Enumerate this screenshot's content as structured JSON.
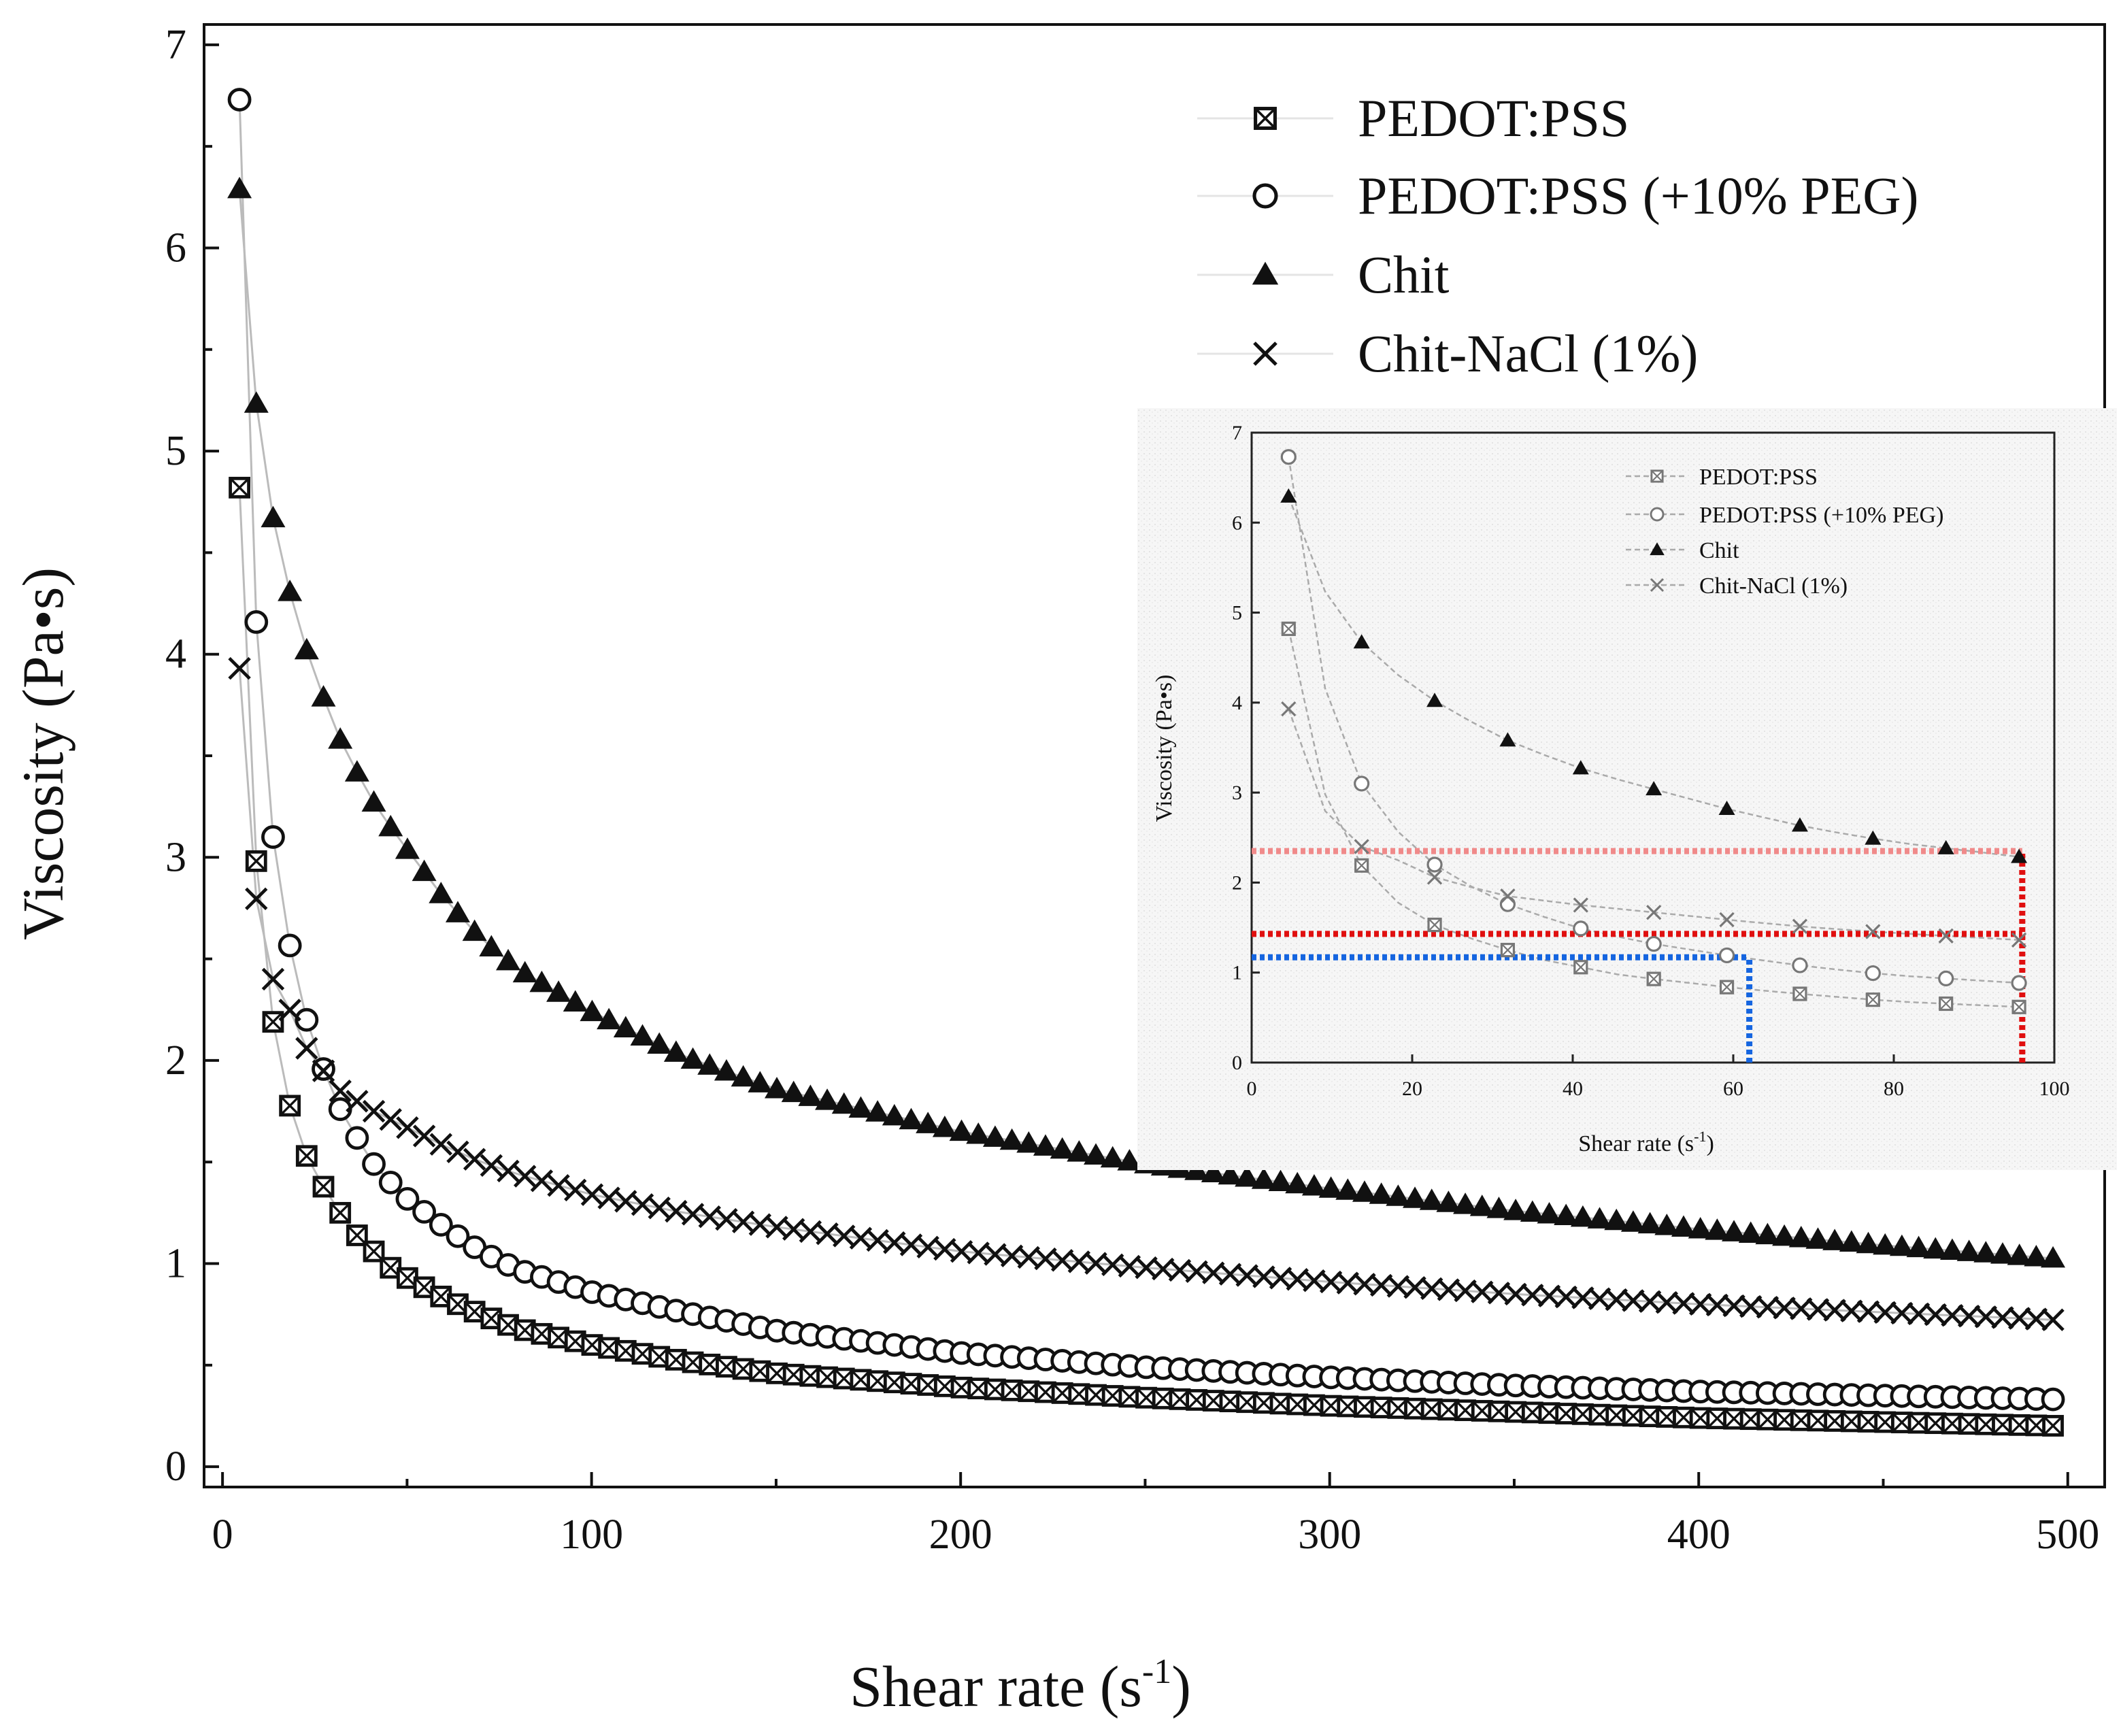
{
  "chart_data": {
    "type": "scatter",
    "xlabel": "Shear rate (s-1)",
    "xlabel_main": "Shear rate (s",
    "xlabel_sup": "-1",
    "xlabel_close": ")",
    "ylabel": "Viscosity (Pa•s)",
    "xlim": [
      -5,
      510
    ],
    "ylim": [
      -0.1,
      7.1
    ],
    "x_ticks": [
      0,
      100,
      200,
      300,
      400,
      500
    ],
    "y_ticks": [
      0,
      1,
      2,
      3,
      4,
      5,
      6,
      7
    ],
    "legend_position": "top-right",
    "series": [
      {
        "name": "PEDOT:PSS",
        "marker": "boxed-x",
        "x": [
          4.6,
          9.1,
          13.7,
          18.2,
          22.8,
          27.3,
          31.9,
          36.4,
          41,
          45.5,
          50,
          60,
          70,
          80,
          100,
          125,
          150,
          200,
          250,
          300,
          350,
          400,
          450,
          500
        ],
        "y": [
          4.82,
          2.99,
          2.19,
          1.78,
          1.53,
          1.38,
          1.25,
          1.14,
          1.06,
          0.98,
          0.93,
          0.83,
          0.75,
          0.68,
          0.6,
          0.52,
          0.46,
          0.39,
          0.34,
          0.3,
          0.27,
          0.24,
          0.22,
          0.2
        ]
      },
      {
        "name": "PEDOT:PSS (+10% PEG)",
        "marker": "circle",
        "x": [
          4.6,
          9.1,
          13.7,
          18.2,
          22.8,
          27.3,
          31.9,
          36.4,
          41,
          45.5,
          50,
          60,
          70,
          80,
          100,
          125,
          150,
          200,
          250,
          300,
          350,
          400,
          450,
          500
        ],
        "y": [
          6.73,
          4.17,
          3.1,
          2.57,
          2.2,
          1.96,
          1.76,
          1.62,
          1.49,
          1.4,
          1.32,
          1.18,
          1.06,
          0.97,
          0.86,
          0.76,
          0.67,
          0.56,
          0.49,
          0.44,
          0.4,
          0.37,
          0.35,
          0.33
        ]
      },
      {
        "name": "Chit",
        "marker": "triangle-filled",
        "x": [
          4.6,
          9.1,
          13.7,
          18.2,
          22.8,
          27.3,
          31.9,
          36.4,
          41,
          45.5,
          50,
          60,
          70,
          80,
          100,
          125,
          150,
          200,
          250,
          300,
          350,
          400,
          450,
          500
        ],
        "y": [
          6.29,
          5.24,
          4.67,
          4.31,
          4.02,
          3.79,
          3.58,
          3.42,
          3.27,
          3.15,
          3.04,
          2.8,
          2.6,
          2.45,
          2.24,
          2.02,
          1.86,
          1.65,
          1.49,
          1.37,
          1.26,
          1.17,
          1.09,
          1.02
        ]
      },
      {
        "name": "Chit-NaCl (1%)",
        "marker": "x-cross",
        "x": [
          4.6,
          9.1,
          13.7,
          18.2,
          22.8,
          27.3,
          31.9,
          36.4,
          41,
          45.5,
          50,
          60,
          70,
          80,
          100,
          125,
          150,
          200,
          250,
          300,
          350,
          400,
          450,
          500
        ],
        "y": [
          3.93,
          2.8,
          2.4,
          2.25,
          2.06,
          1.95,
          1.85,
          1.8,
          1.75,
          1.71,
          1.67,
          1.58,
          1.5,
          1.44,
          1.34,
          1.25,
          1.18,
          1.06,
          0.98,
          0.91,
          0.85,
          0.8,
          0.76,
          0.72
        ]
      }
    ],
    "inset": {
      "xlabel_main": "Shear rate (s",
      "xlabel_sup": "-1",
      "xlabel_close": ")",
      "ylabel": "Viscosity (Pa•s)",
      "xlim": [
        0,
        100
      ],
      "ylim": [
        0,
        7
      ],
      "x_ticks": [
        0,
        20,
        40,
        60,
        80,
        100
      ],
      "y_ticks": [
        0,
        1,
        2,
        3,
        4,
        5,
        6,
        7
      ],
      "legend_position": "top-left",
      "reference_lines": [
        {
          "color": "#f08a8a",
          "y": 2.35,
          "x_start": 0,
          "x_end": 96
        },
        {
          "color": "#e01010",
          "y": 1.43,
          "x_start": 0,
          "x_end": 96
        },
        {
          "color": "#e01010",
          "x": 96,
          "y_start": 0,
          "y_end": 2.35
        },
        {
          "color": "#1565e0",
          "y": 1.17,
          "x_start": 0,
          "x_end": 62
        },
        {
          "color": "#1565e0",
          "x": 62,
          "y_start": 0,
          "y_end": 1.17
        }
      ]
    }
  },
  "colors": {
    "main_marker": "#111111",
    "series_line": "#bbbbbb",
    "inset_marker": "#777777",
    "inset_background": "#f2f2f2"
  }
}
